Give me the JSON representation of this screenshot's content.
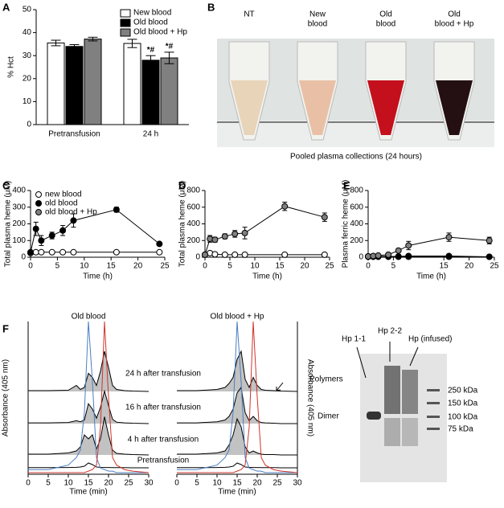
{
  "chart_data": [
    {
      "type": "bar",
      "label": "A",
      "ylabel": "% Hct",
      "categories": [
        "Pretransfusion",
        "24 h"
      ],
      "ylim": [
        0,
        50
      ],
      "yticks": [
        0,
        10,
        20,
        30,
        40,
        50
      ],
      "series": [
        {
          "name": "New blood",
          "color": "#ffffff",
          "values": [
            35.5,
            35.3
          ],
          "errors": [
            1.2,
            1.8
          ],
          "value_annotations": [
            null,
            null
          ]
        },
        {
          "name": "Old blood",
          "color": "#000000",
          "values": [
            34,
            28
          ],
          "errors": [
            0.8,
            2
          ],
          "value_annotations": [
            null,
            "*#"
          ]
        },
        {
          "name": "Old blood + Hp",
          "color": "#808080",
          "values": [
            37.2,
            29
          ],
          "errors": [
            0.8,
            2.5
          ],
          "value_annotations": [
            null,
            "*#"
          ]
        }
      ]
    },
    {
      "type": "line",
      "label": "C",
      "xlabel": "Time (h)",
      "ylabel": "Total plasma heme (μM)",
      "xlim": [
        0,
        25
      ],
      "xticks": [
        0,
        5,
        10,
        15,
        20,
        25
      ],
      "ylim": [
        0,
        400
      ],
      "yticks": [
        0,
        100,
        200,
        300,
        400
      ],
      "series": [
        {
          "name": "new blood",
          "color": "#ffffff",
          "x": [
            0,
            1,
            2,
            4,
            6,
            8,
            16,
            24
          ],
          "values": [
            25,
            30,
            30,
            30,
            30,
            30,
            30,
            30
          ],
          "errors": [
            5,
            5,
            5,
            5,
            5,
            5,
            5,
            5
          ]
        },
        {
          "name": "old blood",
          "color": "#000000",
          "x": [
            0,
            1,
            2,
            4,
            6,
            8,
            16,
            24
          ],
          "values": [
            30,
            170,
            100,
            130,
            160,
            220,
            285,
            80
          ],
          "errors": [
            5,
            40,
            30,
            20,
            30,
            40,
            15,
            10
          ]
        },
        {
          "name": "old blood + Hp",
          "color": "#808080",
          "x": [],
          "values": [],
          "errors": []
        }
      ]
    },
    {
      "type": "line",
      "label": "D",
      "xlabel": "Time (h)",
      "ylabel": "Total plasma heme (μM)",
      "xlim": [
        0,
        25
      ],
      "xticks": [
        0,
        5,
        10,
        15,
        20,
        25
      ],
      "ylim": [
        0,
        800
      ],
      "yticks": [
        0,
        200,
        400,
        600,
        800
      ],
      "series": [
        {
          "color": "#ffffff",
          "x": [
            0,
            1,
            2,
            4,
            6,
            8,
            16,
            24
          ],
          "values": [
            30,
            50,
            35,
            30,
            30,
            30,
            30,
            30
          ],
          "errors": [
            5,
            10,
            5,
            5,
            5,
            5,
            5,
            5
          ]
        },
        {
          "color": "#808080",
          "x": [
            0,
            1,
            2,
            4,
            6,
            8,
            16,
            24
          ],
          "values": [
            30,
            220,
            210,
            250,
            280,
            290,
            610,
            480
          ],
          "errors": [
            10,
            40,
            30,
            30,
            40,
            70,
            50,
            50
          ]
        }
      ]
    },
    {
      "type": "line",
      "label": "E",
      "xlabel": "Time (h)",
      "ylabel": "Plasma ferric heme (μM)",
      "xlim": [
        0,
        25
      ],
      "xticks": [
        0,
        5,
        15,
        20,
        25
      ],
      "ylim": [
        0,
        800
      ],
      "yticks": [
        0,
        200,
        400,
        600,
        800
      ],
      "series": [
        {
          "color": "#ffffff",
          "x": [
            0,
            1,
            2,
            4,
            6,
            8,
            16,
            24
          ],
          "values": [
            5,
            5,
            5,
            5,
            5,
            5,
            5,
            5
          ],
          "errors": [
            3,
            3,
            3,
            3,
            3,
            3,
            3,
            3
          ]
        },
        {
          "color": "#000000",
          "x": [
            0,
            1,
            2,
            4,
            6,
            8,
            16,
            24
          ],
          "values": [
            10,
            10,
            10,
            10,
            10,
            15,
            15,
            5
          ],
          "errors": [
            5,
            5,
            5,
            5,
            5,
            10,
            10,
            5
          ]
        },
        {
          "color": "#808080",
          "x": [
            0,
            1,
            2,
            4,
            6,
            8,
            16,
            24
          ],
          "values": [
            10,
            15,
            20,
            30,
            80,
            140,
            240,
            200
          ],
          "errors": [
            5,
            5,
            10,
            10,
            20,
            50,
            50,
            40
          ]
        }
      ]
    },
    {
      "type": "line",
      "label": "F",
      "title": "Old blood",
      "xlabel": "Time (min)",
      "ylabel": "Absorbance (405 nm)",
      "xlim": [
        0,
        30
      ],
      "xticks": [
        0,
        5,
        10,
        15,
        20,
        25,
        30
      ],
      "x": [
        0,
        5,
        10,
        12,
        13,
        14,
        15,
        16,
        17,
        18,
        19,
        20,
        21,
        22,
        24,
        26,
        30
      ],
      "series": [
        {
          "color": "#000000",
          "area_color": "#9a9a9a",
          "values": [
            0.02,
            0.02,
            0.03,
            0.15,
            0.05,
            0.1,
            0.45,
            0.35,
            0.15,
            0.5,
            1.0,
            0.6,
            0.15,
            0.05,
            0.02,
            0.01,
            0
          ]
        },
        {
          "color": "#000000",
          "area_color": "#9a9a9a",
          "values": [
            0.02,
            0.02,
            0.03,
            0.08,
            0.05,
            0.1,
            0.55,
            0.4,
            0.15,
            0.45,
            0.9,
            0.5,
            0.12,
            0.04,
            0.02,
            0.01,
            0
          ]
        },
        {
          "color": "#000000",
          "area_color": "#9a9a9a",
          "values": [
            0.02,
            0.02,
            0.05,
            0.1,
            0.2,
            0.5,
            0.4,
            0.5,
            0.15,
            0.4,
            0.95,
            0.5,
            0.12,
            0.04,
            0.02,
            0.01,
            0
          ]
        },
        {
          "color": "#000000",
          "values": [
            0.01,
            0.01,
            0.02,
            0.03,
            0.05,
            0.1,
            0.3,
            0.2,
            0.05,
            0.03,
            0.02,
            0.02,
            0.01,
            0.01,
            0.01,
            0,
            0
          ]
        },
        {
          "color": "#4a7fc1",
          "values": [
            0.02,
            0.02,
            0.05,
            0.1,
            0.15,
            0.4,
            1.0,
            0.6,
            0.1,
            0.03,
            0.02,
            0.01,
            0.01,
            0,
            0,
            0,
            0
          ]
        },
        {
          "color": "#d0342c",
          "values": [
            0,
            0,
            0,
            0,
            0,
            0,
            0.01,
            0.02,
            0.05,
            0.3,
            1.0,
            0.5,
            0.1,
            0.05,
            0.02,
            0.01,
            0
          ]
        }
      ]
    },
    {
      "type": "line",
      "title": "Old blood + Hp",
      "xlabel": "Time (min)",
      "ylabel": "Absorbance (405 nm)",
      "xlim": [
        0,
        30
      ],
      "xticks": [
        0,
        5,
        10,
        15,
        20,
        25,
        30
      ],
      "x": [
        0,
        5,
        10,
        12,
        13,
        14,
        15,
        16,
        17,
        18,
        19,
        20,
        21,
        22,
        24,
        26,
        30
      ],
      "series": [
        {
          "color": "#000000",
          "area_color": "#9a9a9a",
          "values": [
            0.02,
            0.02,
            0.05,
            0.1,
            0.2,
            0.35,
            0.8,
            1.0,
            0.3,
            0.1,
            0.35,
            0.15,
            0.05,
            0.03,
            0.02,
            0.01,
            0
          ]
        },
        {
          "color": "#000000",
          "area_color": "#9a9a9a",
          "values": [
            0.02,
            0.02,
            0.05,
            0.1,
            0.2,
            0.4,
            0.85,
            1.0,
            0.3,
            0.08,
            0.2,
            0.08,
            0.03,
            0.02,
            0.01,
            0,
            0
          ]
        },
        {
          "color": "#000000",
          "area_color": "#9a9a9a",
          "values": [
            0.02,
            0.02,
            0.05,
            0.1,
            0.25,
            0.5,
            0.9,
            0.7,
            0.2,
            0.05,
            0.1,
            0.05,
            0.02,
            0.01,
            0.01,
            0,
            0
          ]
        },
        {
          "color": "#000000",
          "values": [
            0.01,
            0.01,
            0.02,
            0.03,
            0.05,
            0.1,
            0.3,
            0.2,
            0.05,
            0.03,
            0.02,
            0.02,
            0.01,
            0.01,
            0.01,
            0,
            0
          ]
        },
        {
          "color": "#4a7fc1",
          "values": [
            0.02,
            0.02,
            0.05,
            0.1,
            0.15,
            0.4,
            1.0,
            0.6,
            0.1,
            0.03,
            0.02,
            0.01,
            0.01,
            0,
            0,
            0,
            0
          ]
        },
        {
          "color": "#d0342c",
          "values": [
            0,
            0,
            0,
            0,
            0,
            0,
            0.01,
            0.02,
            0.05,
            0.3,
            1.0,
            0.5,
            0.1,
            0.05,
            0.02,
            0.01,
            0
          ]
        }
      ]
    }
  ],
  "trace_labels": [
    "24 h after transfusion",
    "16 h after transfusion",
    "4 h after transfusion",
    "Pretransfusion"
  ],
  "photo_panel": {
    "label": "B",
    "tubes": [
      [
        "NT"
      ],
      [
        "New",
        "blood"
      ],
      [
        "Old",
        "blood"
      ],
      [
        "Old",
        "blood + Hp"
      ]
    ],
    "caption": "Pooled plasma collections (24 hours)"
  },
  "gel_panel": {
    "lanes": [
      "Hp 1-1",
      "Hp 2-2",
      "Hp (infused)"
    ],
    "bands": [
      "Polymers",
      "Dimer"
    ],
    "markers": [
      "250 kDa",
      "150 kDa",
      "100 kDa",
      "75 kDa"
    ]
  }
}
